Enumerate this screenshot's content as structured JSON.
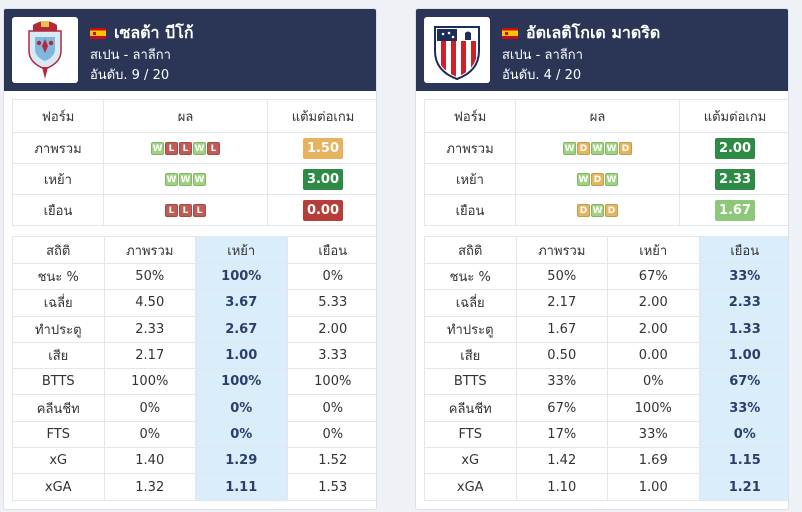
{
  "teams": [
    {
      "name": "เซลต้า บีโก้",
      "league": "สเปน - ลาลีกา",
      "rank": "อันดับ. 9 / 20",
      "logo_icon": "celta-vigo-crest-icon",
      "form_headers": [
        "ฟอร์ม",
        "ผล",
        "แต้มต่อเกม"
      ],
      "form_rows": [
        {
          "label": "ภาพรวม",
          "results": [
            "W",
            "L",
            "L",
            "W",
            "L"
          ],
          "ppg": "1.50",
          "ppg_color": "#e8b15d"
        },
        {
          "label": "เหย้า",
          "results": [
            "W",
            "W",
            "W"
          ],
          "ppg": "3.00",
          "ppg_color": "#2e8b45"
        },
        {
          "label": "เยือน",
          "results": [
            "L",
            "L",
            "L"
          ],
          "ppg": "0.00",
          "ppg_color": "#b83c38"
        }
      ],
      "stats_headers": [
        "สถิติ",
        "ภาพรวม",
        "เหย้า",
        "เยือน"
      ],
      "highlight_col": 2,
      "stats_rows": [
        {
          "label": "ชนะ %",
          "values": [
            "50%",
            "100%",
            "0%"
          ]
        },
        {
          "label": "เฉลี่ย",
          "values": [
            "4.50",
            "3.67",
            "5.33"
          ]
        },
        {
          "label": "ทำประตู",
          "values": [
            "2.33",
            "2.67",
            "2.00"
          ]
        },
        {
          "label": "เสีย",
          "values": [
            "2.17",
            "1.00",
            "3.33"
          ]
        },
        {
          "label": "BTTS",
          "values": [
            "100%",
            "100%",
            "100%"
          ]
        },
        {
          "label": "คลีนชีท",
          "values": [
            "0%",
            "0%",
            "0%"
          ]
        },
        {
          "label": "FTS",
          "values": [
            "0%",
            "0%",
            "0%"
          ]
        },
        {
          "label": "xG",
          "values": [
            "1.40",
            "1.29",
            "1.52"
          ]
        },
        {
          "label": "xGA",
          "values": [
            "1.32",
            "1.11",
            "1.53"
          ]
        }
      ]
    },
    {
      "name": "อัตเลติโกเด มาดริด",
      "league": "สเปน - ลาลีกา",
      "rank": "อันดับ. 4 / 20",
      "logo_icon": "atletico-madrid-crest-icon",
      "form_headers": [
        "ฟอร์ม",
        "ผล",
        "แต้มต่อเกม"
      ],
      "form_rows": [
        {
          "label": "ภาพรวม",
          "results": [
            "W",
            "D",
            "W",
            "W",
            "D"
          ],
          "ppg": "2.00",
          "ppg_color": "#2e8b45"
        },
        {
          "label": "เหย้า",
          "results": [
            "W",
            "D",
            "W"
          ],
          "ppg": "2.33",
          "ppg_color": "#2e8b45"
        },
        {
          "label": "เยือน",
          "results": [
            "D",
            "W",
            "D"
          ],
          "ppg": "1.67",
          "ppg_color": "#8cc77a"
        }
      ],
      "stats_headers": [
        "สถิติ",
        "ภาพรวม",
        "เหย้า",
        "เยือน"
      ],
      "highlight_col": 3,
      "stats_rows": [
        {
          "label": "ชนะ %",
          "values": [
            "50%",
            "67%",
            "33%"
          ]
        },
        {
          "label": "เฉลี่ย",
          "values": [
            "2.17",
            "2.00",
            "2.33"
          ]
        },
        {
          "label": "ทำประตู",
          "values": [
            "1.67",
            "2.00",
            "1.33"
          ]
        },
        {
          "label": "เสีย",
          "values": [
            "0.50",
            "0.00",
            "1.00"
          ]
        },
        {
          "label": "BTTS",
          "values": [
            "33%",
            "0%",
            "67%"
          ]
        },
        {
          "label": "คลีนชีท",
          "values": [
            "67%",
            "100%",
            "33%"
          ]
        },
        {
          "label": "FTS",
          "values": [
            "17%",
            "33%",
            "0%"
          ]
        },
        {
          "label": "xG",
          "values": [
            "1.42",
            "1.69",
            "1.15"
          ]
        },
        {
          "label": "xGA",
          "values": [
            "1.10",
            "1.00",
            "1.21"
          ]
        }
      ]
    }
  ]
}
